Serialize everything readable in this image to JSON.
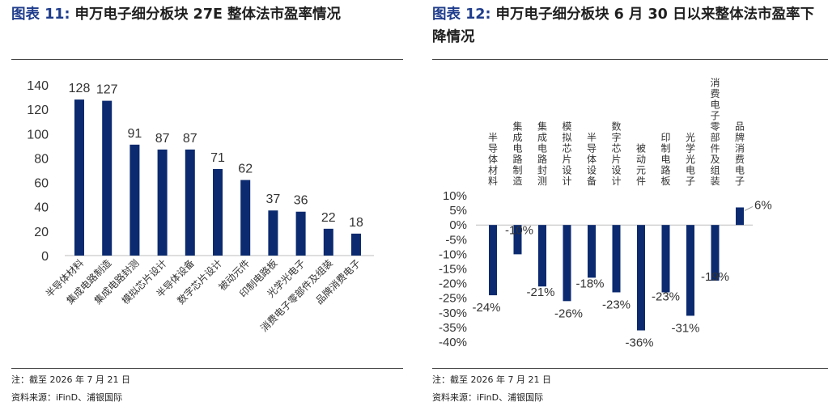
{
  "left": {
    "title_label": "图表",
    "title_num": "11:",
    "title_text": "申万电子细分板块 27E 整体法市盈率情况",
    "note": "注：截至 2026 年 7 月 21 日",
    "source": "资料来源：iFinD、浦银国际"
  },
  "right": {
    "title_label": "图表",
    "title_num": "12:",
    "title_text": "申万电子细分板块 6 月 30 日以来整体法市盈率下降情况",
    "note": "注：截至 2026 年 7 月 21 日",
    "source": "资料来源：iFinD、浦银国际"
  },
  "chart_data": [
    {
      "type": "bar",
      "title": "申万电子细分板块 27E 整体法市盈率情况",
      "categories": [
        "半导体材料",
        "集成电路制造",
        "集成电路封测",
        "模拟芯片设计",
        "半导体设备",
        "数字芯片设计",
        "被动元件",
        "印制电路板",
        "光学光电子",
        "消费电子零部件及组装",
        "品牌消费电子"
      ],
      "values": [
        128,
        127,
        91,
        87,
        87,
        71,
        62,
        37,
        36,
        22,
        18
      ],
      "ylim": [
        0,
        140
      ],
      "yticks": [
        0,
        20,
        40,
        60,
        80,
        100,
        120,
        140
      ],
      "color": "#0b2a6f",
      "grid": false
    },
    {
      "type": "bar",
      "title": "申万电子细分板块 6 月 30 日以来整体法市盈率下降情况",
      "categories": [
        "半导体材料",
        "集成电路制造",
        "集成电路封测",
        "模拟芯片设计",
        "半导体设备",
        "数字芯片设计",
        "被动元件",
        "印制电路板",
        "光学光电子",
        "消费电子零部件及组装",
        "品牌消费电子"
      ],
      "values": [
        -24,
        -10,
        -21,
        -26,
        -18,
        -23,
        -36,
        -23,
        -31,
        -19,
        6
      ],
      "value_labels": [
        "-24%",
        "-10%",
        "-21%",
        "-26%",
        "-18%",
        "-23%",
        "-36%",
        "-23%",
        "-31%",
        "-19%",
        "6%"
      ],
      "ylim": [
        -40,
        10
      ],
      "yticks": [
        "10%",
        "5%",
        "0%",
        "-5%",
        "-10%",
        "-15%",
        "-20%",
        "-25%",
        "-30%",
        "-35%",
        "-40%"
      ],
      "color": "#0b2a6f",
      "grid": false
    }
  ]
}
